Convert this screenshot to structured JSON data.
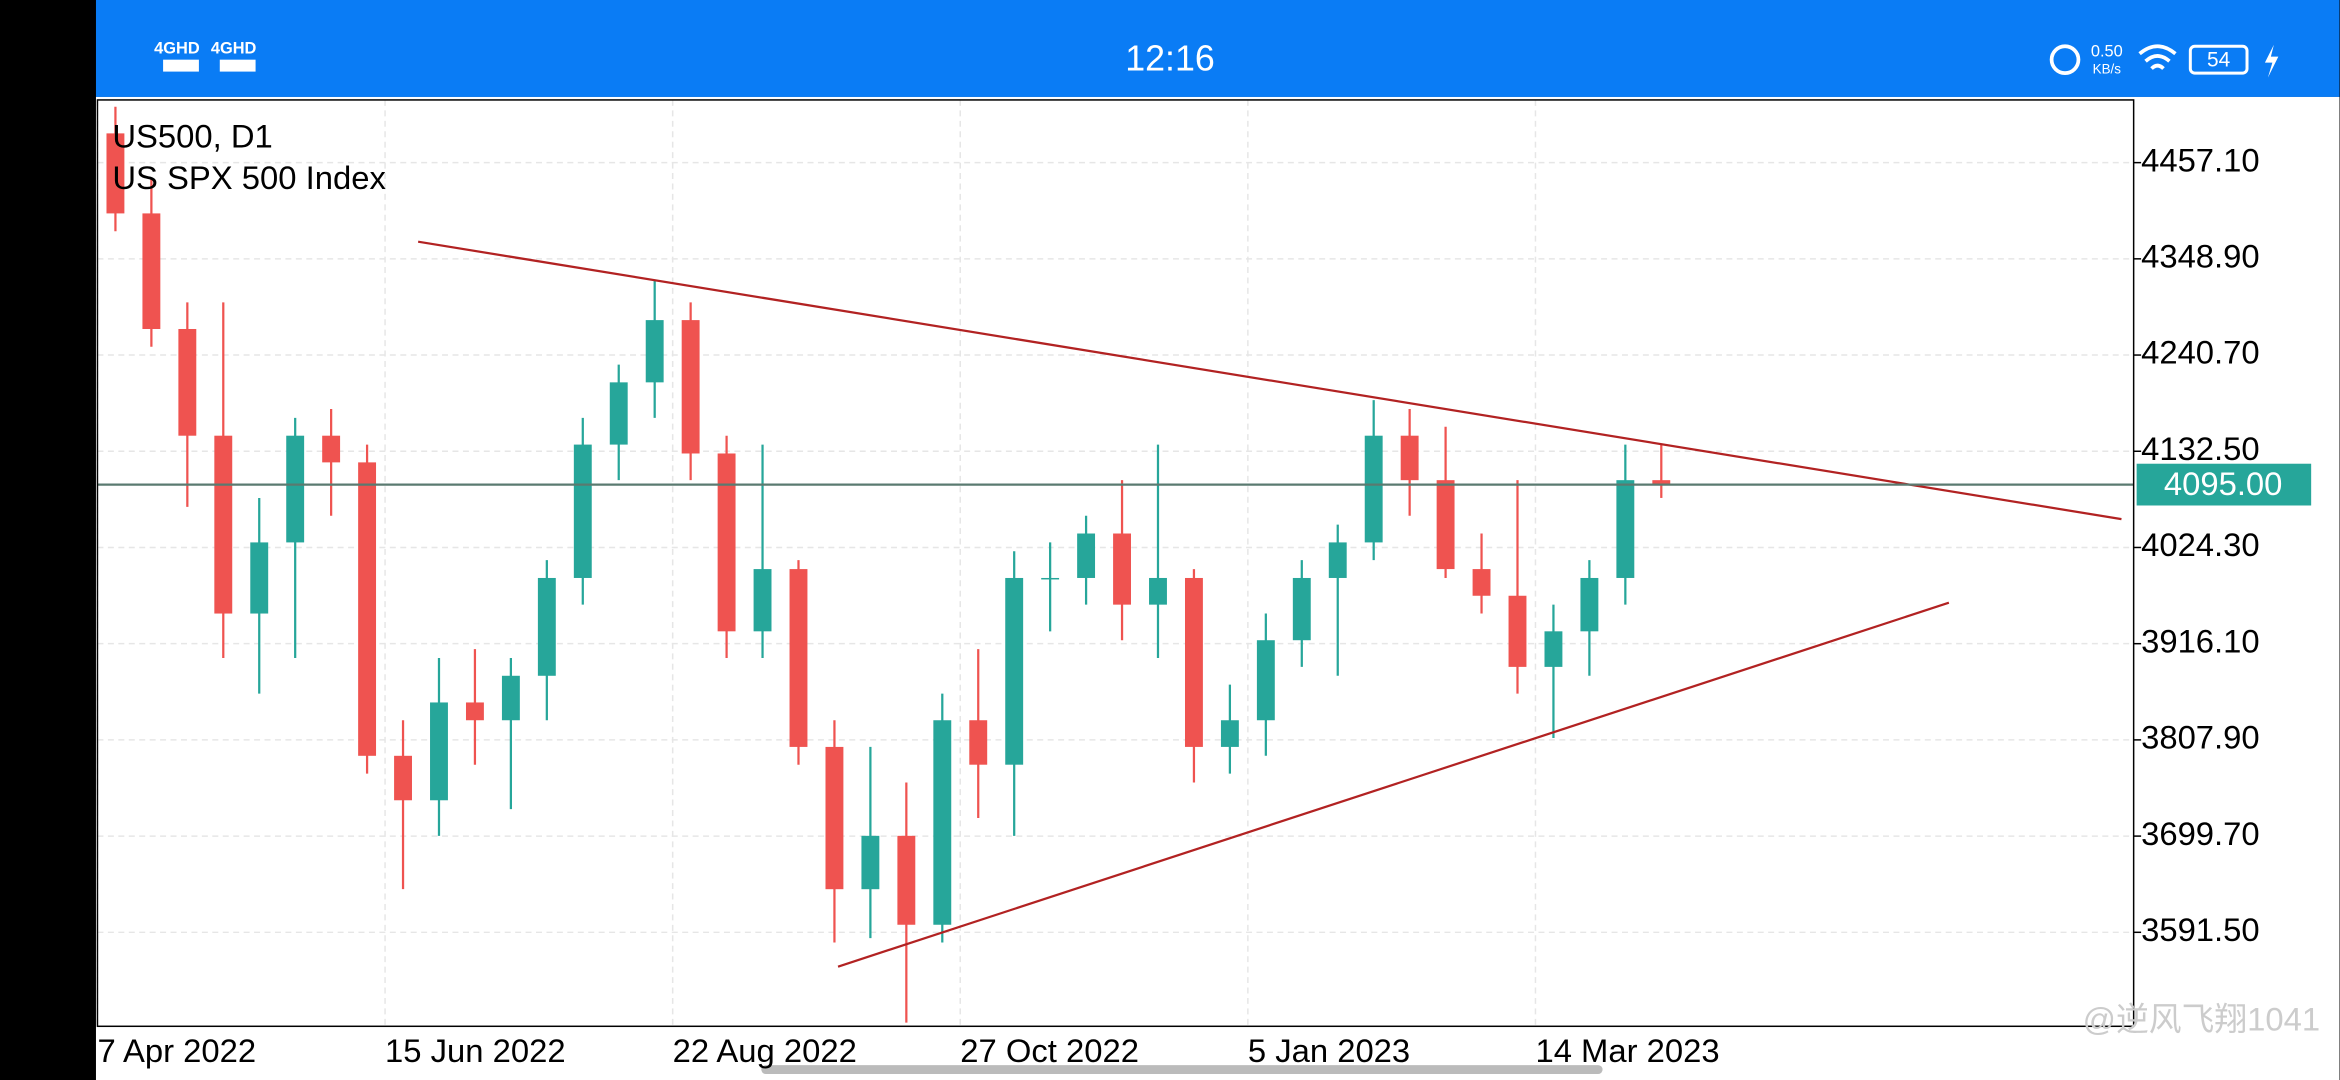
{
  "status_bar": {
    "network": [
      "4GHD",
      "4GHD"
    ],
    "time": "12:16",
    "speed": "0.50",
    "speed_unit": "KB/s",
    "battery": "54"
  },
  "chart_data": {
    "type": "candlestick",
    "title": "US500, D1",
    "subtitle": "US SPX 500 Index",
    "categories": [
      "7 Apr 2022",
      null,
      null,
      null,
      null,
      null,
      null,
      null,
      "15 Jun 2022",
      null,
      null,
      null,
      null,
      null,
      null,
      null,
      "22 Aug 2022",
      null,
      null,
      null,
      null,
      null,
      null,
      null,
      "27 Oct 2022",
      null,
      null,
      null,
      null,
      null,
      null,
      null,
      "5 Jan 2023",
      null,
      null,
      null,
      null,
      null,
      null,
      null,
      "14 Mar 2023",
      null,
      null,
      null
    ],
    "open": [
      4490,
      4400,
      4270,
      4150,
      3950,
      4030,
      4150,
      4120,
      3790,
      3740,
      3850,
      3830,
      3880,
      3990,
      4140,
      4210,
      4280,
      4130,
      3930,
      4000,
      3800,
      3640,
      3700,
      3600,
      3830,
      3780,
      3990,
      3990,
      4040,
      3960,
      3990,
      3800,
      3830,
      3920,
      3990,
      4030,
      4150,
      4100,
      4000,
      3970,
      3890,
      3930,
      3990,
      4100
    ],
    "high": [
      4520,
      4440,
      4300,
      4300,
      4080,
      4170,
      4180,
      4140,
      3830,
      3900,
      3910,
      3900,
      4010,
      4170,
      4230,
      4325,
      4300,
      4150,
      4140,
      4010,
      3830,
      3800,
      3760,
      3860,
      3910,
      4020,
      4030,
      4060,
      4100,
      4140,
      4000,
      3870,
      3950,
      4010,
      4050,
      4190,
      4180,
      4160,
      4040,
      4100,
      3960,
      4010,
      4140,
      4140
    ],
    "low": [
      4380,
      4250,
      4070,
      3900,
      3860,
      3900,
      4060,
      3770,
      3640,
      3700,
      3780,
      3730,
      3830,
      3960,
      4100,
      4170,
      4100,
      3900,
      3900,
      3780,
      3580,
      3585,
      3490,
      3580,
      3720,
      3700,
      3930,
      3960,
      3920,
      3900,
      3760,
      3770,
      3790,
      3890,
      3880,
      4010,
      4060,
      3990,
      3950,
      3860,
      3810,
      3880,
      3960,
      4080
    ],
    "close": [
      4400,
      4270,
      4150,
      3950,
      4030,
      4150,
      4120,
      3790,
      3740,
      3850,
      3830,
      3880,
      3990,
      4140,
      4210,
      4280,
      4130,
      3930,
      4000,
      3800,
      3640,
      3700,
      3600,
      3830,
      3780,
      3990,
      3990,
      4040,
      3960,
      3990,
      3800,
      3830,
      3920,
      3990,
      4030,
      4150,
      4100,
      4000,
      3970,
      3890,
      3930,
      3990,
      4100,
      4095
    ],
    "up_color": "#26a69a",
    "down_color": "#ef5350",
    "ylim": [
      3485.8,
      4527.6
    ],
    "yticks": [
      {
        "value": 3591.5,
        "label": "3591.50"
      },
      {
        "value": 3699.7,
        "label": "3699.70"
      },
      {
        "value": 3807.9,
        "label": "3807.90"
      },
      {
        "value": 3916.1,
        "label": "3916.10"
      },
      {
        "value": 4024.3,
        "label": "4024.30"
      },
      {
        "value": 4132.5,
        "label": "4132.50"
      },
      {
        "value": 4240.7,
        "label": "4240.70"
      },
      {
        "value": 4348.9,
        "label": "4348.90"
      },
      {
        "value": 4457.1,
        "label": "4457.10"
      }
    ],
    "price_line": {
      "value": 4095,
      "label": "4095.00",
      "color": "#26a69a"
    },
    "trendlines": [
      {
        "x": [
          8.92,
          56.3
        ],
        "y": [
          4368.2,
          4056.2
        ],
        "color": "#b22222"
      },
      {
        "x": [
          20.6,
          51.5
        ],
        "y": [
          3552.9,
          3962.2
        ],
        "color": "#b22222"
      }
    ],
    "grid": true
  },
  "watermark": "@逆风飞翔1041"
}
